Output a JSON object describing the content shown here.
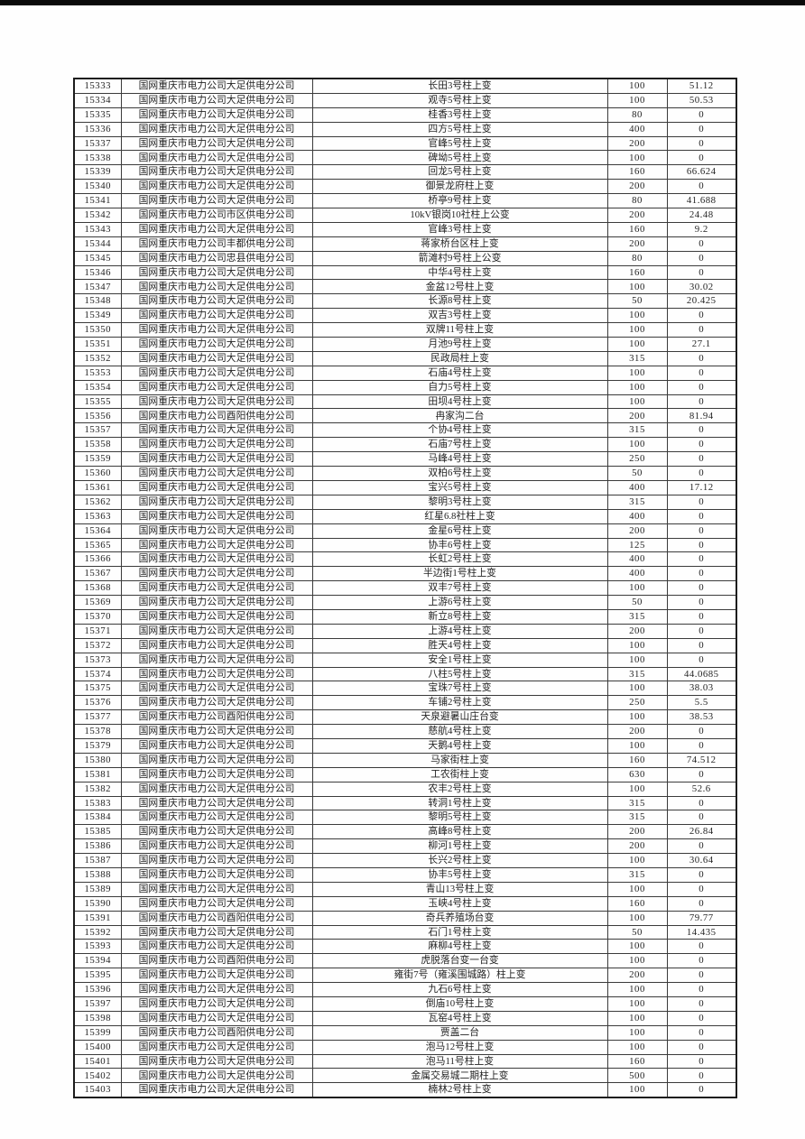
{
  "page": {
    "background_color": "#fefefe",
    "top_bar_color": "#0a0a0a",
    "text_color": "#242424",
    "border_color": "#3b3b3b"
  },
  "table": {
    "rows": [
      [
        "15333",
        "国网重庆市电力公司大足供电分公司",
        "长田3号柱上变",
        "100",
        "51.12"
      ],
      [
        "15334",
        "国网重庆市电力公司大足供电分公司",
        "观寺5号柱上变",
        "100",
        "50.53"
      ],
      [
        "15335",
        "国网重庆市电力公司大足供电分公司",
        "桂香3号柱上变",
        "80",
        "0"
      ],
      [
        "15336",
        "国网重庆市电力公司大足供电分公司",
        "四方5号柱上变",
        "400",
        "0"
      ],
      [
        "15337",
        "国网重庆市电力公司大足供电分公司",
        "官峰5号柱上变",
        "200",
        "0"
      ],
      [
        "15338",
        "国网重庆市电力公司大足供电分公司",
        "碑坳5号柱上变",
        "100",
        "0"
      ],
      [
        "15339",
        "国网重庆市电力公司大足供电分公司",
        "回龙5号柱上变",
        "160",
        "66.624"
      ],
      [
        "15340",
        "国网重庆市电力公司大足供电分公司",
        "御景龙府柱上变",
        "200",
        "0"
      ],
      [
        "15341",
        "国网重庆市电力公司大足供电分公司",
        "桥亭9号柱上变",
        "80",
        "41.688"
      ],
      [
        "15342",
        "国网重庆市电力公司市区供电分公司",
        "10kV银岗10社柱上公变",
        "200",
        "24.48"
      ],
      [
        "15343",
        "国网重庆市电力公司大足供电分公司",
        "官峰3号柱上变",
        "160",
        "9.2"
      ],
      [
        "15344",
        "国网重庆市电力公司丰都供电分公司",
        "蒋家桥台区柱上变",
        "200",
        "0"
      ],
      [
        "15345",
        "国网重庆市电力公司忠县供电分公司",
        "箭滩村9号柱上公变",
        "80",
        "0"
      ],
      [
        "15346",
        "国网重庆市电力公司大足供电分公司",
        "中华4号柱上变",
        "160",
        "0"
      ],
      [
        "15347",
        "国网重庆市电力公司大足供电分公司",
        "金盆12号柱上变",
        "100",
        "30.02"
      ],
      [
        "15348",
        "国网重庆市电力公司大足供电分公司",
        "长源8号柱上变",
        "50",
        "20.425"
      ],
      [
        "15349",
        "国网重庆市电力公司大足供电分公司",
        "双吉3号柱上变",
        "100",
        "0"
      ],
      [
        "15350",
        "国网重庆市电力公司大足供电分公司",
        "双牌11号柱上变",
        "100",
        "0"
      ],
      [
        "15351",
        "国网重庆市电力公司大足供电分公司",
        "月池9号柱上变",
        "100",
        "27.1"
      ],
      [
        "15352",
        "国网重庆市电力公司大足供电分公司",
        "民政局柱上变",
        "315",
        "0"
      ],
      [
        "15353",
        "国网重庆市电力公司大足供电分公司",
        "石庙4号柱上变",
        "100",
        "0"
      ],
      [
        "15354",
        "国网重庆市电力公司大足供电分公司",
        "自力5号柱上变",
        "100",
        "0"
      ],
      [
        "15355",
        "国网重庆市电力公司大足供电分公司",
        "田坝4号柱上变",
        "100",
        "0"
      ],
      [
        "15356",
        "国网重庆市电力公司酉阳供电分公司",
        "冉家沟二台",
        "200",
        "81.94"
      ],
      [
        "15357",
        "国网重庆市电力公司大足供电分公司",
        "个协4号柱上变",
        "315",
        "0"
      ],
      [
        "15358",
        "国网重庆市电力公司大足供电分公司",
        "石庙7号柱上变",
        "100",
        "0"
      ],
      [
        "15359",
        "国网重庆市电力公司大足供电分公司",
        "马峰4号柱上变",
        "250",
        "0"
      ],
      [
        "15360",
        "国网重庆市电力公司大足供电分公司",
        "双柏6号柱上变",
        "50",
        "0"
      ],
      [
        "15361",
        "国网重庆市电力公司大足供电分公司",
        "宝兴5号柱上变",
        "400",
        "17.12"
      ],
      [
        "15362",
        "国网重庆市电力公司大足供电分公司",
        "黎明3号柱上变",
        "315",
        "0"
      ],
      [
        "15363",
        "国网重庆市电力公司大足供电分公司",
        "红星6.8社柱上变",
        "400",
        "0"
      ],
      [
        "15364",
        "国网重庆市电力公司大足供电分公司",
        "金星6号柱上变",
        "200",
        "0"
      ],
      [
        "15365",
        "国网重庆市电力公司大足供电分公司",
        "协丰6号柱上变",
        "125",
        "0"
      ],
      [
        "15366",
        "国网重庆市电力公司大足供电分公司",
        "长虹2号柱上变",
        "400",
        "0"
      ],
      [
        "15367",
        "国网重庆市电力公司大足供电分公司",
        "半边街1号柱上变",
        "400",
        "0"
      ],
      [
        "15368",
        "国网重庆市电力公司大足供电分公司",
        "双丰7号柱上变",
        "100",
        "0"
      ],
      [
        "15369",
        "国网重庆市电力公司大足供电分公司",
        "上游6号柱上变",
        "50",
        "0"
      ],
      [
        "15370",
        "国网重庆市电力公司大足供电分公司",
        "新立8号柱上变",
        "315",
        "0"
      ],
      [
        "15371",
        "国网重庆市电力公司大足供电分公司",
        "上游4号柱上变",
        "200",
        "0"
      ],
      [
        "15372",
        "国网重庆市电力公司大足供电分公司",
        "胜天4号柱上变",
        "100",
        "0"
      ],
      [
        "15373",
        "国网重庆市电力公司大足供电分公司",
        "安全1号柱上变",
        "100",
        "0"
      ],
      [
        "15374",
        "国网重庆市电力公司大足供电分公司",
        "八柱5号柱上变",
        "315",
        "44.0685"
      ],
      [
        "15375",
        "国网重庆市电力公司大足供电分公司",
        "宝珠7号柱上变",
        "100",
        "38.03"
      ],
      [
        "15376",
        "国网重庆市电力公司大足供电分公司",
        "车铺2号柱上变",
        "250",
        "5.5"
      ],
      [
        "15377",
        "国网重庆市电力公司酉阳供电分公司",
        "天泉避暑山庄台变",
        "100",
        "38.53"
      ],
      [
        "15378",
        "国网重庆市电力公司大足供电分公司",
        "慈航4号柱上变",
        "200",
        "0"
      ],
      [
        "15379",
        "国网重庆市电力公司大足供电分公司",
        "天鹅4号柱上变",
        "100",
        "0"
      ],
      [
        "15380",
        "国网重庆市电力公司大足供电分公司",
        "马家街柱上变",
        "160",
        "74.512"
      ],
      [
        "15381",
        "国网重庆市电力公司大足供电分公司",
        "工农街柱上变",
        "630",
        "0"
      ],
      [
        "15382",
        "国网重庆市电力公司大足供电分公司",
        "农丰2号柱上变",
        "100",
        "52.6"
      ],
      [
        "15383",
        "国网重庆市电力公司大足供电分公司",
        "转洞1号柱上变",
        "315",
        "0"
      ],
      [
        "15384",
        "国网重庆市电力公司大足供电分公司",
        "黎明5号柱上变",
        "315",
        "0"
      ],
      [
        "15385",
        "国网重庆市电力公司大足供电分公司",
        "高峰8号柱上变",
        "200",
        "26.84"
      ],
      [
        "15386",
        "国网重庆市电力公司大足供电分公司",
        "柳河1号柱上变",
        "200",
        "0"
      ],
      [
        "15387",
        "国网重庆市电力公司大足供电分公司",
        "长兴2号柱上变",
        "100",
        "30.64"
      ],
      [
        "15388",
        "国网重庆市电力公司大足供电分公司",
        "协丰5号柱上变",
        "315",
        "0"
      ],
      [
        "15389",
        "国网重庆市电力公司大足供电分公司",
        "青山13号柱上变",
        "100",
        "0"
      ],
      [
        "15390",
        "国网重庆市电力公司大足供电分公司",
        "玉峡4号柱上变",
        "160",
        "0"
      ],
      [
        "15391",
        "国网重庆市电力公司酉阳供电分公司",
        "奇兵养殖场台变",
        "100",
        "79.77"
      ],
      [
        "15392",
        "国网重庆市电力公司大足供电分公司",
        "石门1号柱上变",
        "50",
        "14.435"
      ],
      [
        "15393",
        "国网重庆市电力公司大足供电分公司",
        "麻柳4号柱上变",
        "100",
        "0"
      ],
      [
        "15394",
        "国网重庆市电力公司酉阳供电分公司",
        "虎脱落台变一台变",
        "100",
        "0"
      ],
      [
        "15395",
        "国网重庆市电力公司大足供电分公司",
        "雍街7号（雍溪围城路）柱上变",
        "200",
        "0"
      ],
      [
        "15396",
        "国网重庆市电力公司大足供电分公司",
        "九石6号柱上变",
        "100",
        "0"
      ],
      [
        "15397",
        "国网重庆市电力公司大足供电分公司",
        "倒庙10号柱上变",
        "100",
        "0"
      ],
      [
        "15398",
        "国网重庆市电力公司大足供电分公司",
        "瓦窑4号柱上变",
        "100",
        "0"
      ],
      [
        "15399",
        "国网重庆市电力公司酉阳供电分公司",
        "贾盖二台",
        "100",
        "0"
      ],
      [
        "15400",
        "国网重庆市电力公司大足供电分公司",
        "泡马12号柱上变",
        "100",
        "0"
      ],
      [
        "15401",
        "国网重庆市电力公司大足供电分公司",
        "泡马11号柱上变",
        "160",
        "0"
      ],
      [
        "15402",
        "国网重庆市电力公司大足供电分公司",
        "金属交易城二期柱上变",
        "500",
        "0"
      ],
      [
        "15403",
        "国网重庆市电力公司大足供电分公司",
        "楠林2号柱上变",
        "100",
        "0"
      ]
    ]
  }
}
